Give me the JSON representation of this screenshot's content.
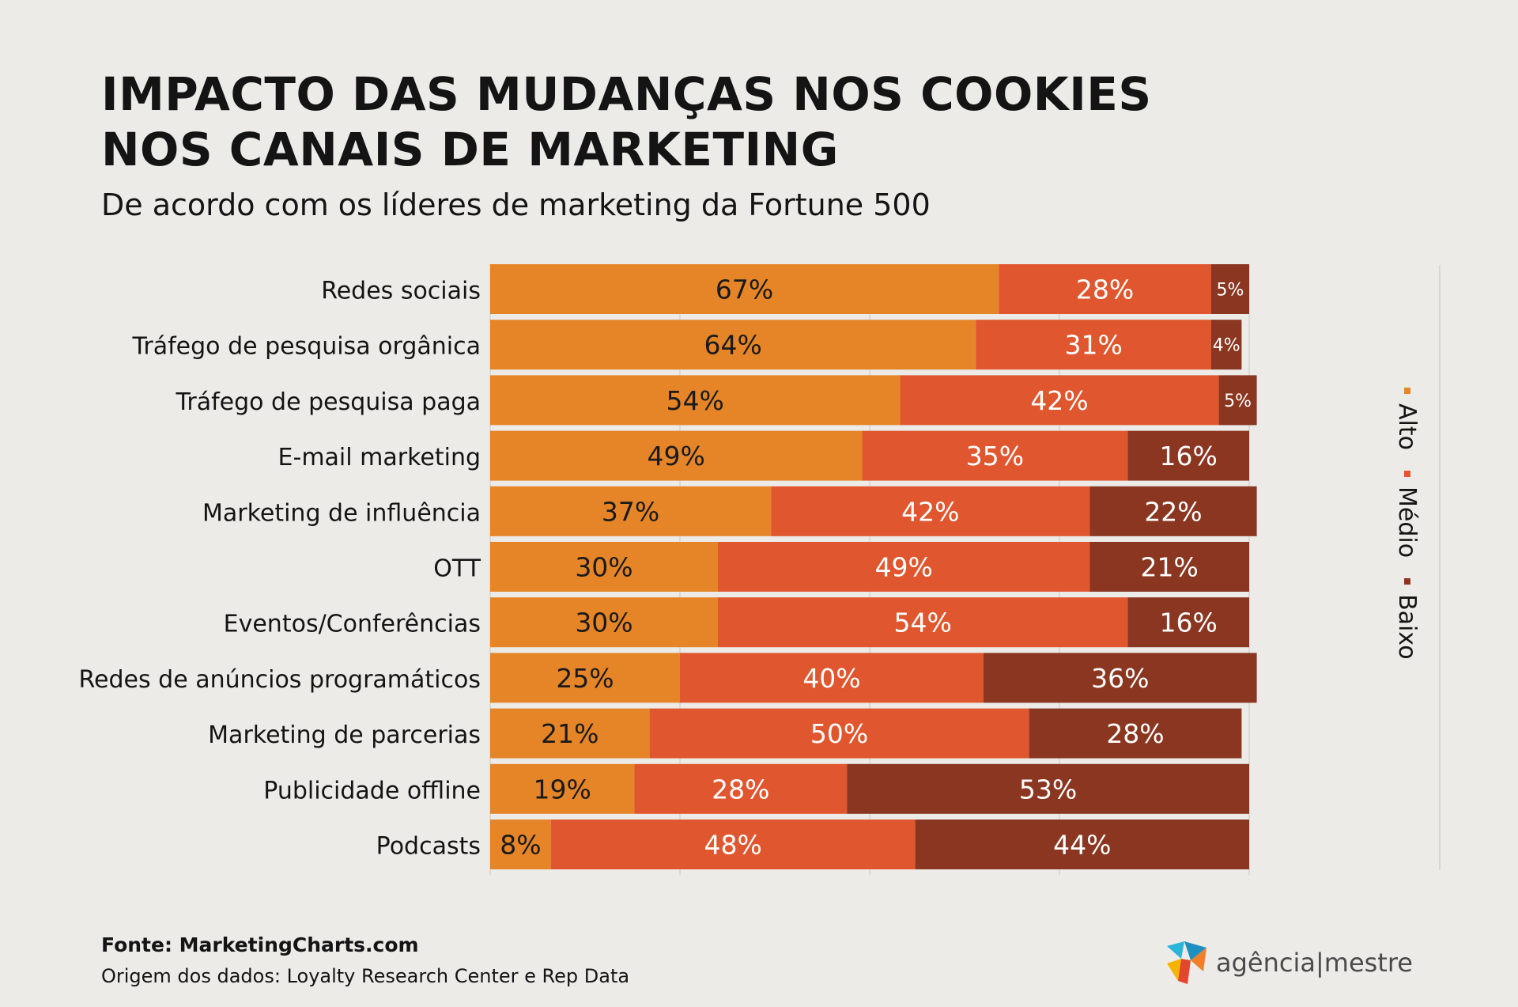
{
  "title_lines": [
    "IMPACTO DAS MUDANÇAS NOS COOKIES",
    "NOS CANAIS DE MARKETING"
  ],
  "subtitle": "De acordo com os líderes de marketing da Fortune 500",
  "legend": [
    {
      "label": "Alto",
      "color": "#e58528"
    },
    {
      "label": "Médio",
      "color": "#e0562e"
    },
    {
      "label": "Baixo",
      "color": "#8b3620"
    }
  ],
  "chart_data": {
    "type": "bar",
    "orientation": "horizontal",
    "stacked": true,
    "categories": [
      "Redes sociais",
      "Tráfego de pesquisa orgânica",
      "Tráfego de pesquisa paga",
      "E-mail marketing",
      "Marketing de influência",
      "OTT",
      "Eventos/Conferências",
      "Redes de anúncios programáticos",
      "Marketing de parcerias",
      "Publicidade offline",
      "Podcasts"
    ],
    "series": [
      {
        "name": "Alto",
        "color": "#e58528",
        "values": [
          67,
          64,
          54,
          49,
          37,
          30,
          30,
          25,
          21,
          19,
          8
        ]
      },
      {
        "name": "Médio",
        "color": "#e0562e",
        "values": [
          28,
          31,
          42,
          35,
          42,
          49,
          54,
          40,
          50,
          28,
          48
        ]
      },
      {
        "name": "Baixo",
        "color": "#8b3620",
        "values": [
          5,
          4,
          5,
          16,
          22,
          21,
          16,
          36,
          28,
          53,
          44
        ]
      }
    ],
    "value_suffix": "%",
    "xlim": [
      0,
      100
    ],
    "grid": true,
    "legend_position": "right"
  },
  "footer": {
    "source": "Fonte: MarketingCharts.com",
    "origin": "Origem dos dados: Loyalty Research Center e Rep Data"
  },
  "logo": {
    "part1": "agência",
    "sep": "|",
    "part2": "mestre"
  }
}
